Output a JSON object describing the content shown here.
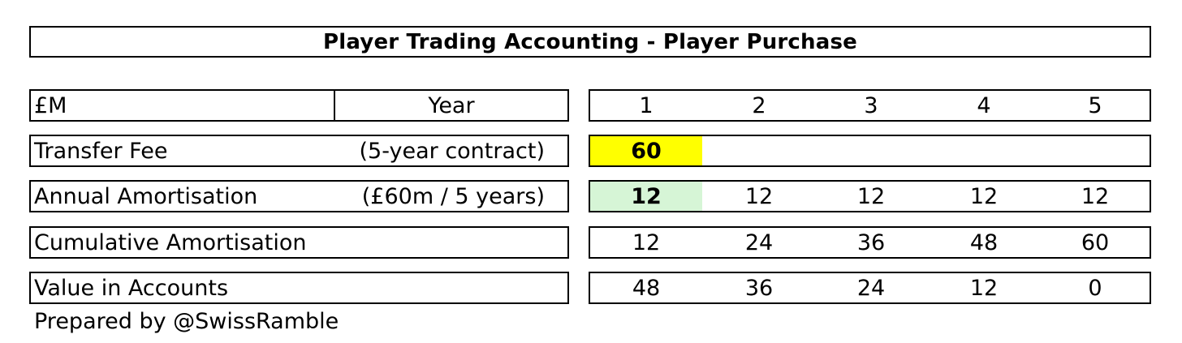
{
  "title": "Player Trading Accounting - Player Purchase",
  "header": {
    "unit_label": "£M",
    "year_label": "Year",
    "years": [
      "1",
      "2",
      "3",
      "4",
      "5"
    ]
  },
  "rows": [
    {
      "label": "Transfer Fee",
      "note": "(5-year contract)",
      "values": [
        "60",
        "",
        "",
        "",
        ""
      ]
    },
    {
      "label": "Annual Amortisation",
      "note": "(£60m / 5 years)",
      "values": [
        "12",
        "12",
        "12",
        "12",
        "12"
      ]
    },
    {
      "label": "Cumulative Amortisation",
      "note": "",
      "values": [
        "12",
        "24",
        "36",
        "48",
        "60"
      ]
    },
    {
      "label": "Value in Accounts",
      "note": "",
      "values": [
        "48",
        "36",
        "24",
        "12",
        "0"
      ]
    }
  ],
  "highlights": {
    "transfer_fee_year1_color": "#ffff00",
    "annual_amortisation_year1_color": "#d6f5d6"
  },
  "footer": "Prepared by @SwissRamble"
}
